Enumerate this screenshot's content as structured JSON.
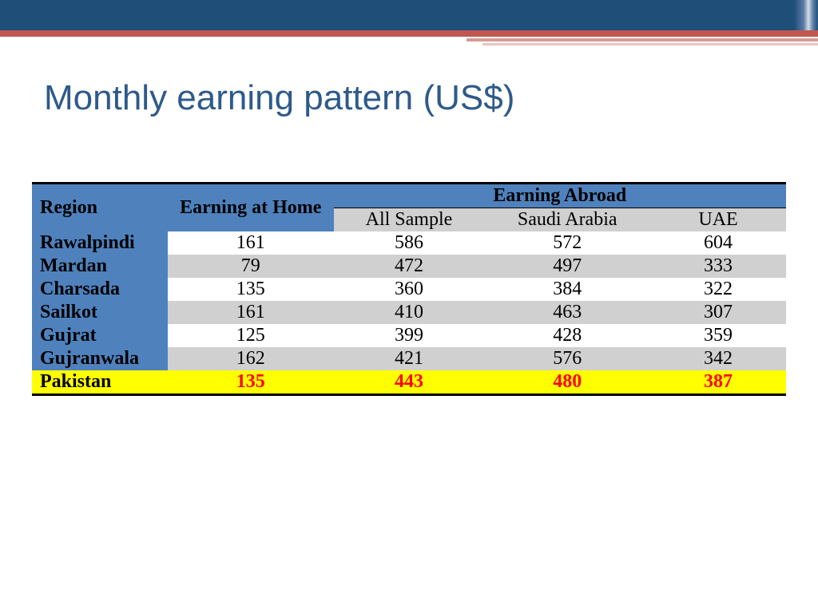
{
  "title": "Monthly earning pattern (US$)",
  "table": {
    "headers": {
      "region": "Region",
      "home": "Earning at Home",
      "abroad": "Earning Abroad",
      "sub_all": "All Sample",
      "sub_sa": "Saudi Arabia",
      "sub_uae": "UAE"
    },
    "rows": [
      {
        "region": "Rawalpindi",
        "home": "161",
        "all": "586",
        "sa": "572",
        "uae": "604"
      },
      {
        "region": "Mardan",
        "home": "79",
        "all": "472",
        "sa": "497",
        "uae": "333"
      },
      {
        "region": "Charsada",
        "home": "135",
        "all": "360",
        "sa": "384",
        "uae": "322"
      },
      {
        "region": "Sailkot",
        "home": "161",
        "all": "410",
        "sa": "463",
        "uae": "307"
      },
      {
        "region": "Gujrat",
        "home": "125",
        "all": "399",
        "sa": "428",
        "uae": "359"
      },
      {
        "region": "Gujranwala",
        "home": "162",
        "all": "421",
        "sa": "576",
        "uae": "342"
      }
    ],
    "total": {
      "region": "Pakistan",
      "home": "135",
      "all": "443",
      "sa": "480",
      "uae": "387"
    },
    "colors": {
      "header_bg": "#4f81bd",
      "alt_bg": "#d0d0d0",
      "total_bg": "#ffff00",
      "total_text": "#ff0000",
      "title_color": "#2e5a8a",
      "banner_color": "#1f4e79",
      "stripe_color": "#c05850"
    },
    "fontsize_body": 24,
    "fontsize_title": 44
  }
}
